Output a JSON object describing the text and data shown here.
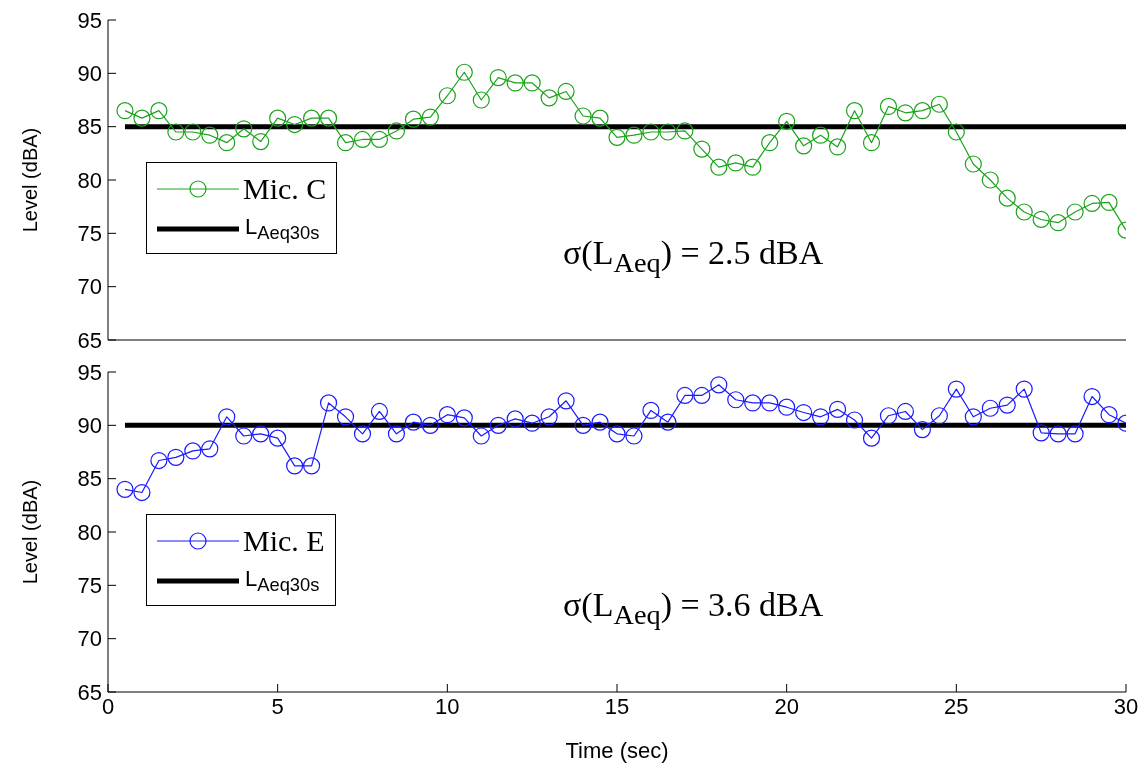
{
  "chart_data": [
    {
      "type": "line",
      "ylabel": "Level (dBA)",
      "x": [
        0.5,
        1,
        1.5,
        2,
        2.5,
        3,
        3.5,
        4,
        4.5,
        5,
        5.5,
        6,
        6.5,
        7,
        7.5,
        8,
        8.5,
        9,
        9.5,
        10,
        10.5,
        11,
        11.5,
        12,
        12.5,
        13,
        13.5,
        14,
        14.5,
        15,
        15.5,
        16,
        16.5,
        17,
        17.5,
        18,
        18.5,
        19,
        19.5,
        20,
        20.5,
        21,
        21.5,
        22,
        22.5,
        23,
        23.5,
        24,
        24.5,
        25,
        25.5,
        26,
        26.5,
        27,
        27.5,
        28,
        28.5,
        29,
        29.5,
        30
      ],
      "series": [
        {
          "name": "Mic. C",
          "color": "#1aa31a",
          "values": [
            86.5,
            85.8,
            86.5,
            84.5,
            84.5,
            84.2,
            83.5,
            84.8,
            83.6,
            85.8,
            85.2,
            85.8,
            85.8,
            83.5,
            83.8,
            83.8,
            84.6,
            85.7,
            85.9,
            87.9,
            90.1,
            87.5,
            89.6,
            89.1,
            89.1,
            87.7,
            88.3,
            86.0,
            85.8,
            84.0,
            84.2,
            84.5,
            84.5,
            84.6,
            82.9,
            81.2,
            81.6,
            81.2,
            83.5,
            85.5,
            83.2,
            84.2,
            83.1,
            86.5,
            83.5,
            86.9,
            86.3,
            86.5,
            87.1,
            84.5,
            81.5,
            80.0,
            78.3,
            77.0,
            76.3,
            76.0,
            77.0,
            77.8,
            77.9,
            75.3
          ]
        }
      ],
      "ref_lines": [
        {
          "axis": "y",
          "value": 85,
          "label": "L$_{Aeq30s}$",
          "color": "#000000"
        }
      ],
      "annotations": [
        "σ(L$_{Aeq}$) = 2.5 dBA"
      ],
      "xlim": [
        0,
        30
      ],
      "xticks": [
        0,
        5,
        10,
        15,
        20,
        25,
        30
      ],
      "ylim": [
        65,
        95
      ],
      "yticks": [
        65,
        70,
        75,
        80,
        85,
        90,
        95
      ],
      "tick_labels": "y",
      "marker": "circle",
      "line_style": "solid",
      "legend": "bottom left",
      "grid": false
    },
    {
      "type": "line",
      "xlabel": "Time (sec)",
      "ylabel": "Level (dBA)",
      "x": [
        0.5,
        1,
        1.5,
        2,
        2.5,
        3,
        3.5,
        4,
        4.5,
        5,
        5.5,
        6,
        6.5,
        7,
        7.5,
        8,
        8.5,
        9,
        9.5,
        10,
        10.5,
        11,
        11.5,
        12,
        12.5,
        13,
        13.5,
        14,
        14.5,
        15,
        15.5,
        16,
        16.5,
        17,
        17.5,
        18,
        18.5,
        19,
        19.5,
        20,
        20.5,
        21,
        21.5,
        22,
        22.5,
        23,
        23.5,
        24,
        24.5,
        25,
        25.5,
        26,
        26.5,
        27,
        27.5,
        28,
        28.5,
        29,
        29.5,
        30
      ],
      "series": [
        {
          "name": "Mic. E",
          "color": "#1a1aff",
          "values": [
            84.0,
            83.7,
            86.7,
            87.0,
            87.6,
            87.8,
            90.8,
            89.0,
            89.2,
            88.8,
            86.2,
            86.2,
            92.1,
            90.8,
            89.2,
            91.3,
            89.2,
            90.3,
            90.0,
            91.0,
            90.7,
            89.0,
            90.0,
            90.6,
            90.2,
            90.8,
            92.3,
            90.0,
            90.3,
            89.2,
            89.0,
            91.4,
            90.3,
            92.8,
            92.8,
            93.8,
            92.4,
            92.1,
            92.1,
            91.7,
            91.2,
            90.8,
            91.5,
            90.5,
            88.8,
            90.9,
            91.3,
            89.6,
            90.9,
            93.4,
            90.8,
            91.6,
            91.9,
            93.4,
            89.3,
            89.2,
            89.2,
            92.7,
            91.0,
            90.2
          ]
        }
      ],
      "ref_lines": [
        {
          "axis": "y",
          "value": 90,
          "label": "L$_{Aeq30s}$",
          "color": "#000000"
        }
      ],
      "annotations": [
        "σ(L$_{Aeq}$) = 3.6 dBA"
      ],
      "xlim": [
        0,
        30
      ],
      "xticks": [
        0,
        5,
        10,
        15,
        20,
        25,
        30
      ],
      "ylim": [
        65,
        95
      ],
      "yticks": [
        65,
        70,
        75,
        80,
        85,
        90,
        95
      ],
      "marker": "circle",
      "line_style": "solid",
      "legend": "bottom left",
      "grid": false
    }
  ]
}
